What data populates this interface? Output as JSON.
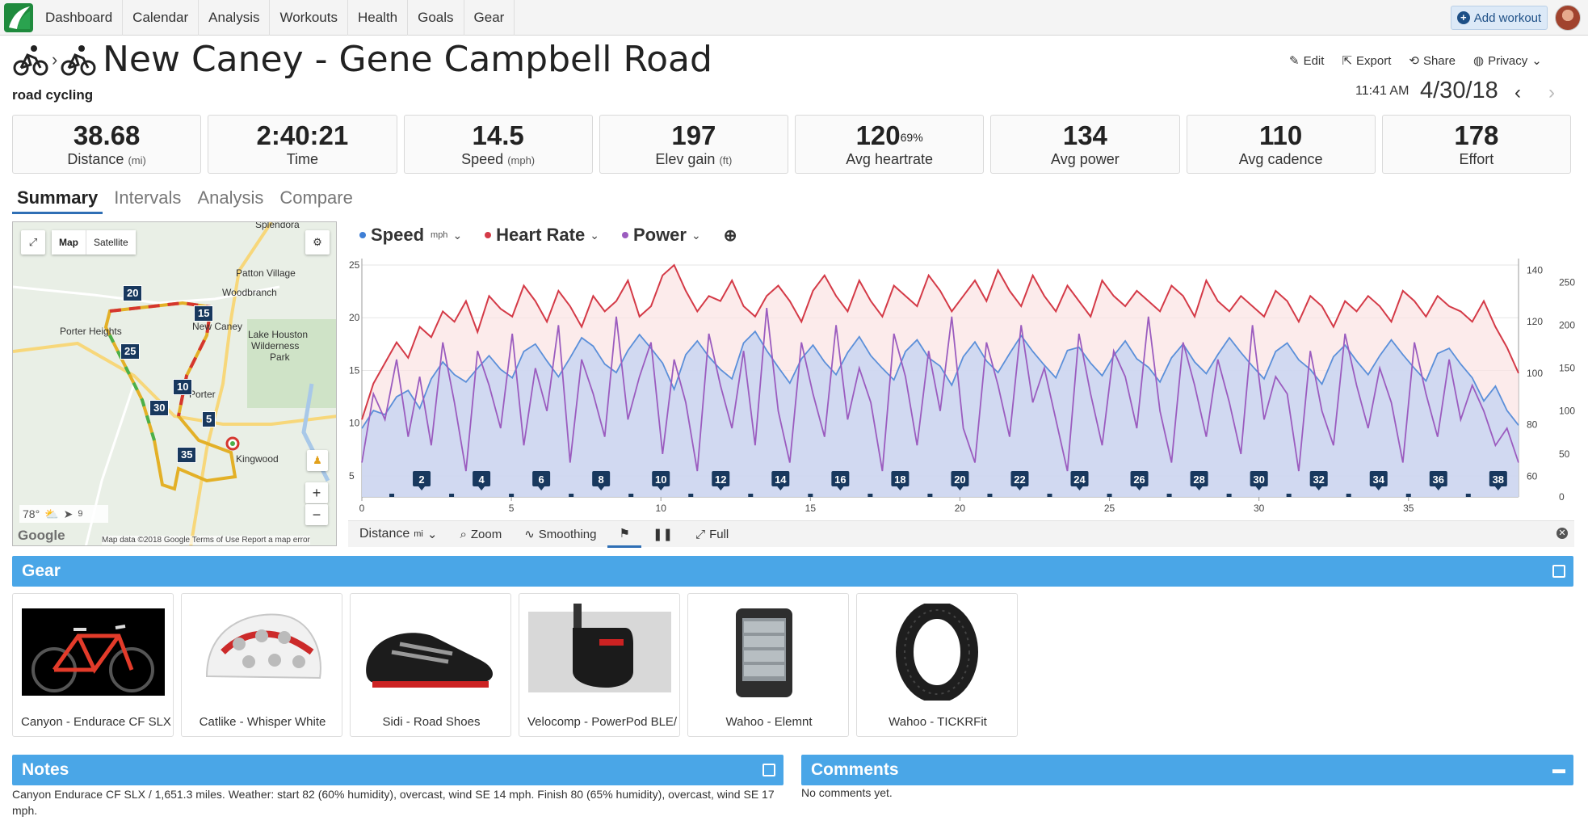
{
  "nav": {
    "items": [
      "Dashboard",
      "Calendar",
      "Analysis",
      "Workouts",
      "Health",
      "Goals",
      "Gear"
    ],
    "add_workout": "Add workout"
  },
  "header": {
    "title": "New Caney - Gene Campbell Road",
    "activity_type": "road cycling",
    "actions": {
      "edit": "Edit",
      "export": "Export",
      "share": "Share",
      "privacy": "Privacy"
    },
    "time": "11:41 AM",
    "date": "4/30/18"
  },
  "stats": [
    {
      "value": "38.68",
      "label": "Distance",
      "unit": "(mi)"
    },
    {
      "value": "2:40:21",
      "label": "Time",
      "unit": ""
    },
    {
      "value": "14.5",
      "label": "Speed",
      "unit": "(mph)"
    },
    {
      "value": "197",
      "label": "Elev gain",
      "unit": "(ft)"
    },
    {
      "value": "120",
      "sup": "69%",
      "label": "Avg heartrate",
      "unit": ""
    },
    {
      "value": "134",
      "label": "Avg power",
      "unit": ""
    },
    {
      "value": "110",
      "label": "Avg cadence",
      "unit": ""
    },
    {
      "value": "178",
      "label": "Effort",
      "unit": ""
    }
  ],
  "tabs": [
    "Summary",
    "Intervals",
    "Analysis",
    "Compare"
  ],
  "map": {
    "type_map": "Map",
    "type_satellite": "Satellite",
    "places": [
      "Patton Village",
      "Woodbranch",
      "Porter Heights",
      "New Caney",
      "Lake Houston",
      "Wilderness",
      "Park",
      "Porter",
      "Kingwood",
      "Splendora"
    ],
    "markers": [
      "20",
      "15",
      "25",
      "10",
      "30",
      "5",
      "35"
    ],
    "weather_temp": "78°",
    "wind": "9",
    "footer": "Map data ©2018 Google   Terms of Use   Report a map error",
    "google": "Google"
  },
  "chart_legend": {
    "speed": "Speed",
    "speed_unit": "mph",
    "heart_rate": "Heart Rate",
    "power": "Power"
  },
  "chart_data": {
    "type": "line",
    "x_label": "Distance",
    "x_unit": "mi",
    "xlim": [
      0,
      38.68
    ],
    "x_ticks": [
      0,
      5,
      10,
      15,
      20,
      25,
      30,
      35
    ],
    "y_left_ticks": [
      5,
      10,
      15,
      20,
      25
    ],
    "y_hr_ticks": [
      60,
      80,
      100,
      120,
      140
    ],
    "y_power_ticks": [
      0,
      50,
      100,
      150,
      200,
      250
    ],
    "mile_markers": [
      "2",
      "4",
      "6",
      "8",
      "10",
      "12",
      "14",
      "16",
      "18",
      "20",
      "22",
      "24",
      "26",
      "28",
      "30",
      "32",
      "34",
      "36",
      "38"
    ],
    "series": [
      {
        "name": "Speed",
        "color": "#5b8fd9",
        "values": [
          9.5,
          11.2,
          10.8,
          12.5,
          13.1,
          11.4,
          14.2,
          15.8,
          14.6,
          13.9,
          15.2,
          16.4,
          15.1,
          14.3,
          16.8,
          17.5,
          15.9,
          14.4,
          16.2,
          18.1,
          17.3,
          15.6,
          14.8,
          16.9,
          18.4,
          17.1,
          15.7,
          13.2,
          16.5,
          17.8,
          16.3,
          15.1,
          14.2,
          17.6,
          18.7,
          16.9,
          15.3,
          13.8,
          16.1,
          17.4,
          15.8,
          14.6,
          16.7,
          18.2,
          16.4,
          15.2,
          14.1,
          16.8,
          17.9,
          16.2,
          15.4,
          13.6,
          16.3,
          17.7,
          15.9,
          14.8,
          16.6,
          18.3,
          16.8,
          15.5,
          14.3,
          16.9,
          17.2,
          15.7,
          14.5,
          16.4,
          17.8,
          16.1,
          15.3,
          13.9,
          16.2,
          17.5,
          15.8,
          14.7,
          16.5,
          18.1,
          16.7,
          15.4,
          14.2,
          16.8,
          17.6,
          16.0,
          15.1,
          13.7,
          16.3,
          17.4,
          15.9,
          14.6,
          16.4,
          17.9,
          16.5,
          15.2,
          14.0,
          16.6,
          17.1,
          15.6,
          14.3,
          12.1,
          13.5,
          11.2,
          9.8
        ]
      },
      {
        "name": "Heart Rate",
        "color": "#d43a47",
        "values": [
          82,
          96,
          104,
          112,
          106,
          118,
          114,
          124,
          120,
          128,
          116,
          130,
          125,
          122,
          134,
          128,
          120,
          132,
          126,
          118,
          130,
          124,
          128,
          136,
          122,
          126,
          138,
          142,
          132,
          124,
          130,
          128,
          136,
          126,
          122,
          130,
          134,
          128,
          120,
          132,
          138,
          130,
          124,
          136,
          128,
          122,
          134,
          130,
          126,
          138,
          132,
          124,
          130,
          136,
          128,
          140,
          132,
          126,
          138,
          130,
          124,
          134,
          128,
          122,
          136,
          130,
          126,
          132,
          128,
          124,
          134,
          130,
          122,
          136,
          128,
          124,
          130,
          126,
          122,
          132,
          128,
          120,
          130,
          126,
          118,
          128,
          124,
          130,
          126,
          120,
          132,
          128,
          122,
          130,
          126,
          124,
          120,
          128,
          118,
          110,
          100
        ]
      },
      {
        "name": "Power",
        "color": "#9b5cbf",
        "values": [
          40,
          120,
          90,
          160,
          70,
          140,
          60,
          180,
          110,
          30,
          170,
          130,
          80,
          190,
          60,
          150,
          100,
          200,
          40,
          160,
          120,
          70,
          210,
          90,
          140,
          180,
          50,
          160,
          110,
          30,
          190,
          130,
          80,
          170,
          60,
          220,
          100,
          40,
          180,
          120,
          70,
          200,
          90,
          150,
          110,
          30,
          190,
          140,
          60,
          170,
          100,
          210,
          80,
          40,
          180,
          130,
          70,
          200,
          110,
          150,
          90,
          30,
          190,
          120,
          60,
          170,
          140,
          80,
          210,
          100,
          40,
          180,
          130,
          70,
          160,
          110,
          50,
          200,
          90,
          140,
          120,
          30,
          170,
          100,
          60,
          190,
          130,
          80,
          150,
          110,
          40,
          180,
          120,
          70,
          160,
          90,
          130,
          100,
          60,
          80,
          40
        ]
      }
    ]
  },
  "chart_toolbar": {
    "distance": "Distance",
    "distance_unit": "mi",
    "zoom": "Zoom",
    "smoothing": "Smoothing",
    "full": "Full"
  },
  "gear": {
    "title": "Gear",
    "items": [
      {
        "label": "Canyon - Endurace CF SLX E",
        "icon": "bike-icon"
      },
      {
        "label": "Catlike - Whisper White",
        "icon": "helmet-icon"
      },
      {
        "label": "Sidi - Road Shoes",
        "icon": "shoe-icon"
      },
      {
        "label": "Velocomp - PowerPod BLE/",
        "icon": "powermeter-icon"
      },
      {
        "label": "Wahoo - Elemnt",
        "icon": "bike-computer-icon"
      },
      {
        "label": "Wahoo - TICKRFit",
        "icon": "hr-strap-icon"
      }
    ]
  },
  "notes": {
    "title": "Notes",
    "text": "Canyon Endurace CF SLX / 1,651.3 miles. Weather: start 82 (60% humidity), overcast, wind SE 14 mph. Finish 80 (65% humidity), overcast, wind SE 17 mph."
  },
  "comments": {
    "title": "Comments",
    "text": "No comments yet."
  }
}
